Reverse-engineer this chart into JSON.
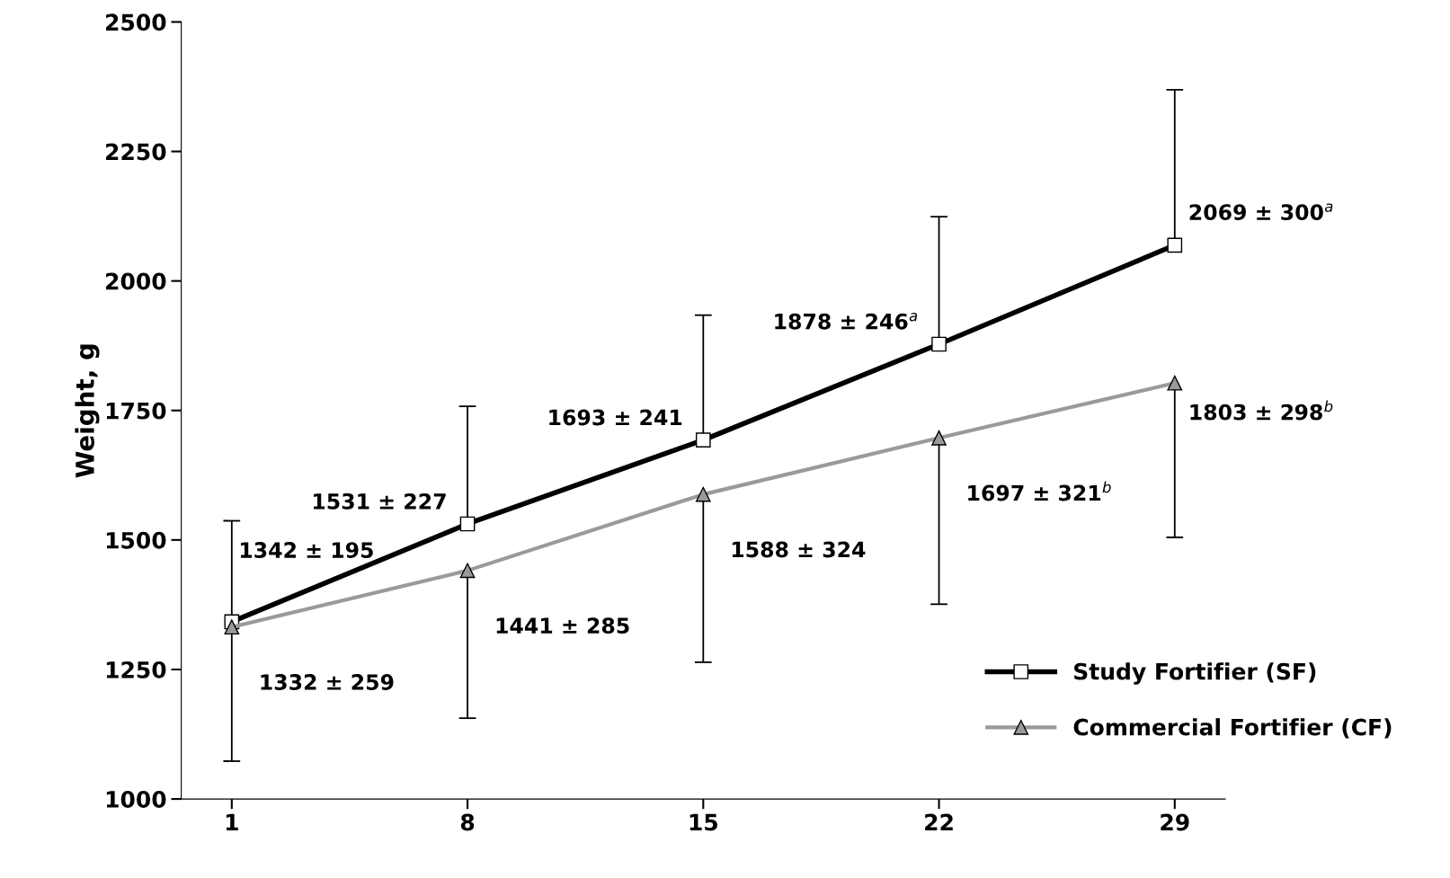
{
  "chart_data": {
    "type": "line",
    "ylabel": "Weight, g",
    "x": [
      1,
      8,
      15,
      22,
      29
    ],
    "xlim": [
      -0.5,
      30.5
    ],
    "xticks": [
      1,
      8,
      15,
      22,
      29
    ],
    "ylim": [
      1000,
      2500
    ],
    "yticks": [
      1000,
      1250,
      1500,
      1750,
      2000,
      2250,
      2500
    ],
    "grid": false,
    "legend": "bottom right",
    "line_style": "solid",
    "series": [
      {
        "name": "Study Fortifier (SF)",
        "color": "#000000",
        "marker": "square",
        "values": [
          1342,
          1531,
          1693,
          1878,
          2069
        ],
        "errors": [
          [
            1342,
            1537
          ],
          [
            1531,
            1758
          ],
          [
            1693,
            1934
          ],
          [
            1878,
            2124
          ],
          [
            2069,
            2369
          ]
        ],
        "value_labels": [
          "1342 ± 195",
          "1531 ± 227",
          "1693 ± 241",
          "1878 ± 246$^{a}$",
          "2069 ± 300$^{a}$"
        ]
      },
      {
        "name": "Commercial Fortifier (CF)",
        "color": "#9a9a9a",
        "marker": "triangle",
        "values": [
          1332,
          1441,
          1588,
          1697,
          1803
        ],
        "errors": [
          [
            1073,
            1332
          ],
          [
            1156,
            1441
          ],
          [
            1264,
            1588
          ],
          [
            1376,
            1697
          ],
          [
            1505,
            1803
          ]
        ],
        "value_labels": [
          "1332 ± 259",
          "1441 ± 285",
          "1588 ± 324",
          "1697 ± 321$^{b}$",
          "1803 ± 298$^{b}$"
        ]
      }
    ]
  }
}
